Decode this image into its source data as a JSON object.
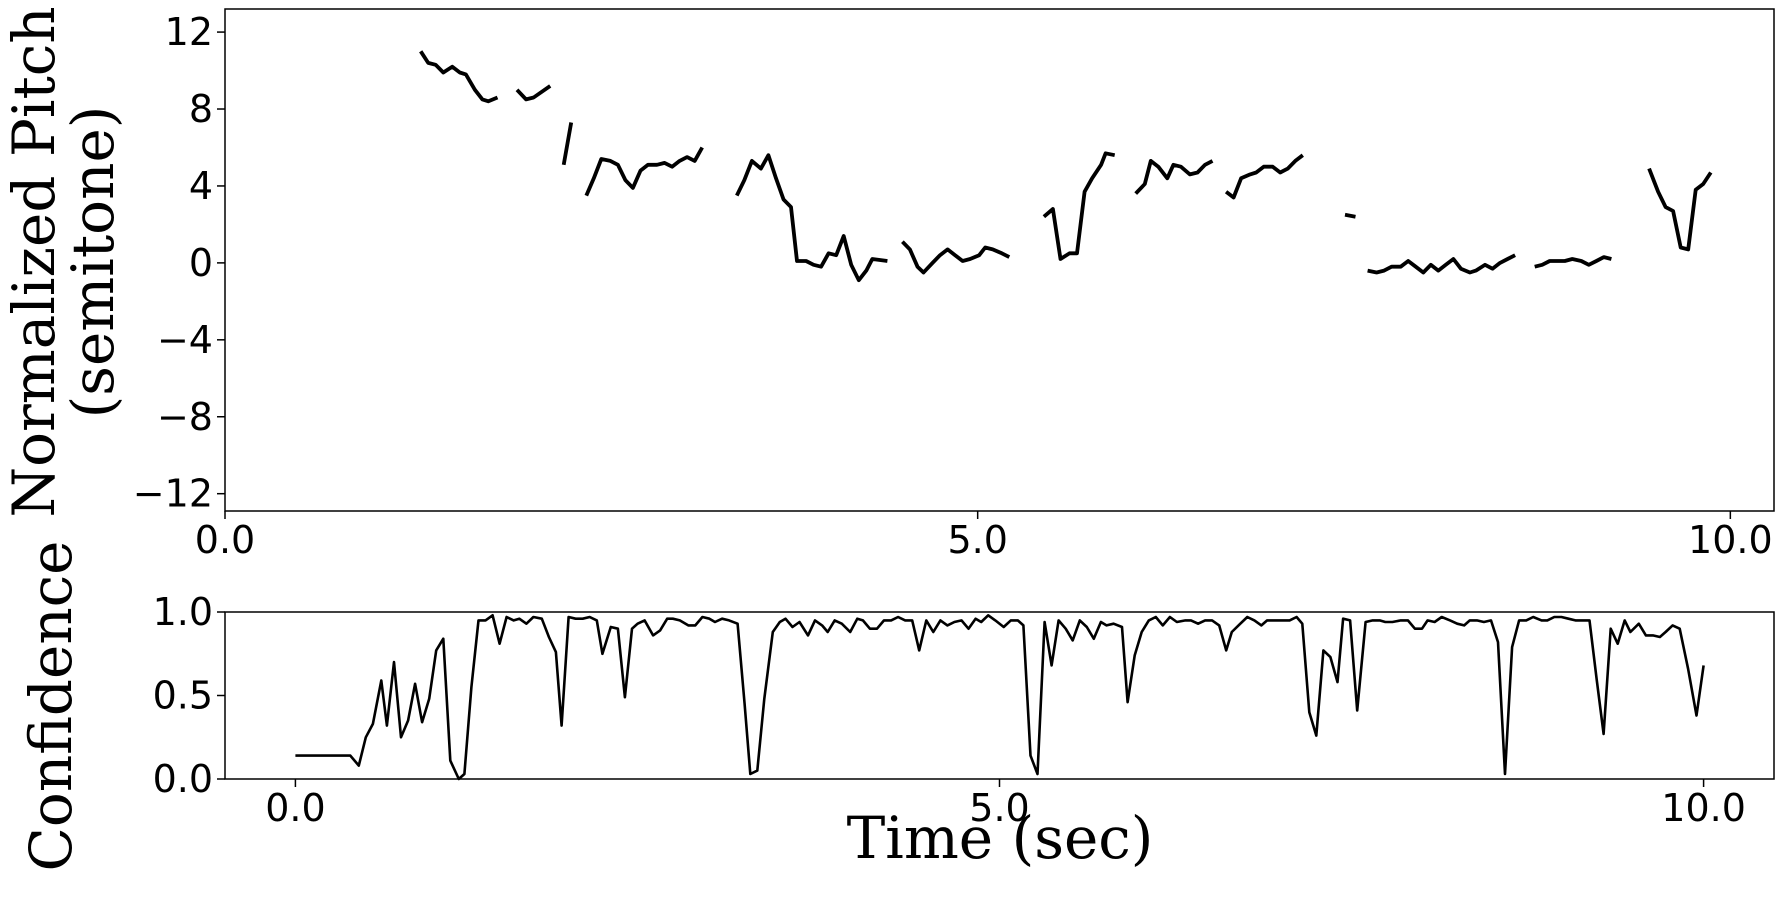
{
  "chart_data": [
    {
      "type": "line",
      "ylabel": [
        "Normalized Pitch",
        "(semitone)"
      ],
      "xlim": [
        0,
        10.29
      ],
      "ylim": [
        -12.9,
        13.2
      ],
      "xticks": [
        {
          "value": 0,
          "label": "0.0"
        },
        {
          "value": 5,
          "label": "5.0"
        },
        {
          "value": 10,
          "label": "10.0"
        }
      ],
      "yticks": [
        12,
        8,
        4,
        0,
        {
          "value": -4,
          "label": "−4"
        },
        {
          "value": -8,
          "label": "−8"
        },
        {
          "value": -12,
          "label": "−12"
        }
      ],
      "series": [
        {
          "color": "#000000",
          "x": [
            1.3,
            1.35,
            1.4,
            1.45,
            1.51,
            1.56,
            1.6,
            1.66,
            1.71,
            1.75,
            1.81,
            1.87,
            1.94,
            2.0,
            2.05,
            2.16,
            2.2,
            2.25,
            2.3,
            2.35,
            2.4,
            2.45,
            2.5,
            2.56,
            2.61,
            2.66,
            2.71,
            2.76,
            2.81,
            2.87,
            2.92,
            2.97,
            3.02,
            3.07,
            3.12,
            3.17,
            3.3,
            3.4,
            3.45,
            3.5,
            3.56,
            3.61,
            3.66,
            3.71,
            3.76,
            3.8,
            3.86,
            3.91,
            3.96,
            4.01,
            4.06,
            4.11,
            4.16,
            4.21,
            4.26,
            4.3,
            4.4,
            4.45,
            4.5,
            4.55,
            4.6,
            4.64,
            4.7,
            4.75,
            4.8,
            4.85,
            4.9,
            4.95,
            5.01,
            5.05,
            5.1,
            5.16,
            5.21,
            5.32,
            5.44,
            5.5,
            5.55,
            5.61,
            5.66,
            5.71,
            5.76,
            5.82,
            5.85,
            5.91,
            5.98,
            6.05,
            6.11,
            6.15,
            6.2,
            6.26,
            6.3,
            6.35,
            6.41,
            6.46,
            6.51,
            6.56,
            6.6,
            6.65,
            6.7,
            6.75,
            6.81,
            6.85,
            6.9,
            6.96,
            7.01,
            7.06,
            7.11,
            7.16,
            7.3,
            7.44,
            7.51,
            7.55,
            7.59,
            7.65,
            7.7,
            7.75,
            7.81,
            7.86,
            7.91,
            7.96,
            8.01,
            8.06,
            8.11,
            8.16,
            8.21,
            8.27,
            8.31,
            8.37,
            8.42,
            8.47,
            8.52,
            8.57,
            8.63,
            8.7,
            8.75,
            8.8,
            8.85,
            8.9,
            8.95,
            9.01,
            9.06,
            9.11,
            9.16,
            9.21,
            9.33,
            9.46,
            9.52,
            9.57,
            9.62,
            9.67,
            9.72,
            9.77,
            9.82,
            9.87
          ],
          "values": [
            11.0,
            10.4,
            10.3,
            9.9,
            10.2,
            9.9,
            9.8,
            9.0,
            8.5,
            8.4,
            8.6,
            null,
            9.0,
            8.5,
            8.6,
            9.2,
            null,
            5.1,
            7.3,
            null,
            3.5,
            4.4,
            5.4,
            5.3,
            5.1,
            4.3,
            3.9,
            4.8,
            5.1,
            5.1,
            5.2,
            5.0,
            5.3,
            5.5,
            5.3,
            6.0,
            null,
            3.5,
            4.3,
            5.3,
            4.9,
            5.6,
            4.4,
            3.3,
            2.9,
            0.1,
            0.1,
            -0.1,
            -0.2,
            0.5,
            0.4,
            1.4,
            -0.1,
            -0.9,
            -0.4,
            0.2,
            0.1,
            null,
            1.1,
            0.7,
            -0.2,
            -0.5,
            0,
            0.4,
            0.7,
            0.4,
            0.1,
            0.2,
            0.4,
            0.8,
            0.7,
            0.5,
            0.3,
            null,
            2.4,
            2.8,
            0.2,
            0.5,
            0.5,
            3.7,
            4.4,
            5.1,
            5.7,
            5.6,
            null,
            3.6,
            4.1,
            5.3,
            5.0,
            4.4,
            5.1,
            5.0,
            4.6,
            4.7,
            5.1,
            5.3,
            null,
            3.7,
            3.4,
            4.4,
            4.6,
            4.7,
            5.0,
            5.0,
            4.7,
            4.9,
            5.3,
            5.6,
            null,
            2.5,
            2.4,
            null,
            -0.4,
            -0.5,
            -0.4,
            -0.2,
            -0.2,
            0.1,
            -0.2,
            -0.5,
            -0.1,
            -0.4,
            -0.1,
            0.2,
            -0.3,
            -0.5,
            -0.4,
            -0.1,
            -0.3,
            0,
            0.2,
            0.4,
            null,
            -0.2,
            -0.1,
            0.1,
            0.1,
            0.1,
            0.2,
            0.1,
            -0.1,
            0.1,
            0.3,
            0.2,
            null,
            4.9,
            3.7,
            2.9,
            2.7,
            0.8,
            0.7,
            3.8,
            4.1,
            4.7
          ]
        }
      ]
    },
    {
      "type": "line",
      "ylabel": [
        "Confidence"
      ],
      "xlabel": "Time (sec)",
      "xlim": [
        -0.5,
        10.5
      ],
      "ylim": [
        0,
        1
      ],
      "xticks": [
        {
          "value": 0,
          "label": "0.0"
        },
        {
          "value": 5,
          "label": "5.0"
        },
        {
          "value": 10,
          "label": "10.0"
        }
      ],
      "yticks": [
        {
          "value": 0,
          "label": "0.0"
        },
        {
          "value": 0.5,
          "label": "0.5"
        },
        {
          "value": 1,
          "label": "1.0"
        }
      ],
      "series": [
        {
          "color": "#000000",
          "x": [
            0,
            0.39,
            0.45,
            0.5,
            0.55,
            0.61,
            0.65,
            0.7,
            0.75,
            0.8,
            0.85,
            0.9,
            0.95,
            1.0,
            1.05,
            1.1,
            1.16,
            1.2,
            1.25,
            1.3,
            1.35,
            1.4,
            1.45,
            1.5,
            1.55,
            1.59,
            1.64,
            1.69,
            1.75,
            1.8,
            1.85,
            1.89,
            1.94,
            1.99,
            2.04,
            2.09,
            2.14,
            2.18,
            2.24,
            2.29,
            2.34,
            2.39,
            2.43,
            2.48,
            2.54,
            2.59,
            2.64,
            2.68,
            2.73,
            2.79,
            2.84,
            2.89,
            2.94,
            2.98,
            3.03,
            3.08,
            3.14,
            3.19,
            3.23,
            3.28,
            3.33,
            3.39,
            3.44,
            3.48,
            3.53,
            3.58,
            3.64,
            3.69,
            3.74,
            3.78,
            3.83,
            3.88,
            3.94,
            3.99,
            4.03,
            4.08,
            4.13,
            4.18,
            4.23,
            4.28,
            4.33,
            4.38,
            4.43,
            4.48,
            4.53,
            4.58,
            4.63,
            4.68,
            4.73,
            4.78,
            4.83,
            4.87,
            4.92,
            4.97,
            5.03,
            5.08,
            5.13,
            5.17,
            5.22,
            5.27,
            5.32,
            5.37,
            5.42,
            5.47,
            5.52,
            5.57,
            5.62,
            5.67,
            5.72,
            5.76,
            5.81,
            5.87,
            5.91,
            5.96,
            6.01,
            6.06,
            6.11,
            6.16,
            6.21,
            6.26,
            6.32,
            6.36,
            6.41,
            6.46,
            6.51,
            6.56,
            6.61,
            6.65,
            6.71,
            6.76,
            6.81,
            6.86,
            6.9,
            6.95,
            7.0,
            7.06,
            7.11,
            7.15,
            7.2,
            7.25,
            7.3,
            7.35,
            7.4,
            7.44,
            7.49,
            7.54,
            7.6,
            7.65,
            7.7,
            7.74,
            7.79,
            7.85,
            7.9,
            7.95,
            8.0,
            8.04,
            8.09,
            8.14,
            8.2,
            8.25,
            8.3,
            8.34,
            8.39,
            8.44,
            8.49,
            8.54,
            8.59,
            8.64,
            8.69,
            8.74,
            8.79,
            8.85,
            8.89,
            8.94,
            8.99,
            9.04,
            9.09,
            9.14,
            9.19,
            9.24,
            9.29,
            9.34,
            9.39,
            9.44,
            9.48,
            9.54,
            9.59,
            9.64,
            9.69,
            9.73,
            9.78,
            9.83,
            9.89,
            9.95,
            10.0
          ],
          "values": [
            0.14,
            0.14,
            0.08,
            0.25,
            0.33,
            0.59,
            0.32,
            0.7,
            0.25,
            0.35,
            0.57,
            0.34,
            0.48,
            0.77,
            0.84,
            0.11,
            0.0,
            0.03,
            0.55,
            0.95,
            0.95,
            0.98,
            0.81,
            0.97,
            0.95,
            0.96,
            0.93,
            0.97,
            0.96,
            0.85,
            0.76,
            0.32,
            0.97,
            0.96,
            0.96,
            0.97,
            0.95,
            0.75,
            0.91,
            0.9,
            0.49,
            0.9,
            0.93,
            0.95,
            0.86,
            0.89,
            0.96,
            0.96,
            0.95,
            0.92,
            0.92,
            0.97,
            0.96,
            0.94,
            0.96,
            0.95,
            0.93,
            0.45,
            0.03,
            0.05,
            0.48,
            0.88,
            0.94,
            0.96,
            0.91,
            0.94,
            0.86,
            0.95,
            0.92,
            0.88,
            0.95,
            0.93,
            0.88,
            0.96,
            0.95,
            0.9,
            0.9,
            0.95,
            0.95,
            0.97,
            0.95,
            0.95,
            0.77,
            0.95,
            0.88,
            0.95,
            0.92,
            0.94,
            0.95,
            0.9,
            0.96,
            0.94,
            0.98,
            0.95,
            0.91,
            0.95,
            0.95,
            0.92,
            0.14,
            0.03,
            0.94,
            0.68,
            0.95,
            0.9,
            0.83,
            0.95,
            0.91,
            0.84,
            0.94,
            0.92,
            0.93,
            0.91,
            0.46,
            0.74,
            0.88,
            0.95,
            0.97,
            0.92,
            0.97,
            0.94,
            0.95,
            0.95,
            0.93,
            0.95,
            0.95,
            0.92,
            0.77,
            0.88,
            0.93,
            0.97,
            0.95,
            0.92,
            0.95,
            0.95,
            0.95,
            0.95,
            0.97,
            0.93,
            0.4,
            0.26,
            0.77,
            0.73,
            0.58,
            0.96,
            0.95,
            0.41,
            0.94,
            0.95,
            0.95,
            0.94,
            0.94,
            0.95,
            0.95,
            0.9,
            0.9,
            0.95,
            0.94,
            0.97,
            0.95,
            0.93,
            0.92,
            0.95,
            0.95,
            0.94,
            0.95,
            0.82,
            0.03,
            0.79,
            0.95,
            0.95,
            0.97,
            0.95,
            0.95,
            0.97,
            0.97,
            0.96,
            0.95,
            0.95,
            0.95,
            0.6,
            0.27,
            0.9,
            0.81,
            0.95,
            0.88,
            0.93,
            0.86,
            0.86,
            0.85,
            0.88,
            0.92,
            0.9,
            0.66,
            0.38,
            0.68
          ]
        }
      ]
    }
  ]
}
